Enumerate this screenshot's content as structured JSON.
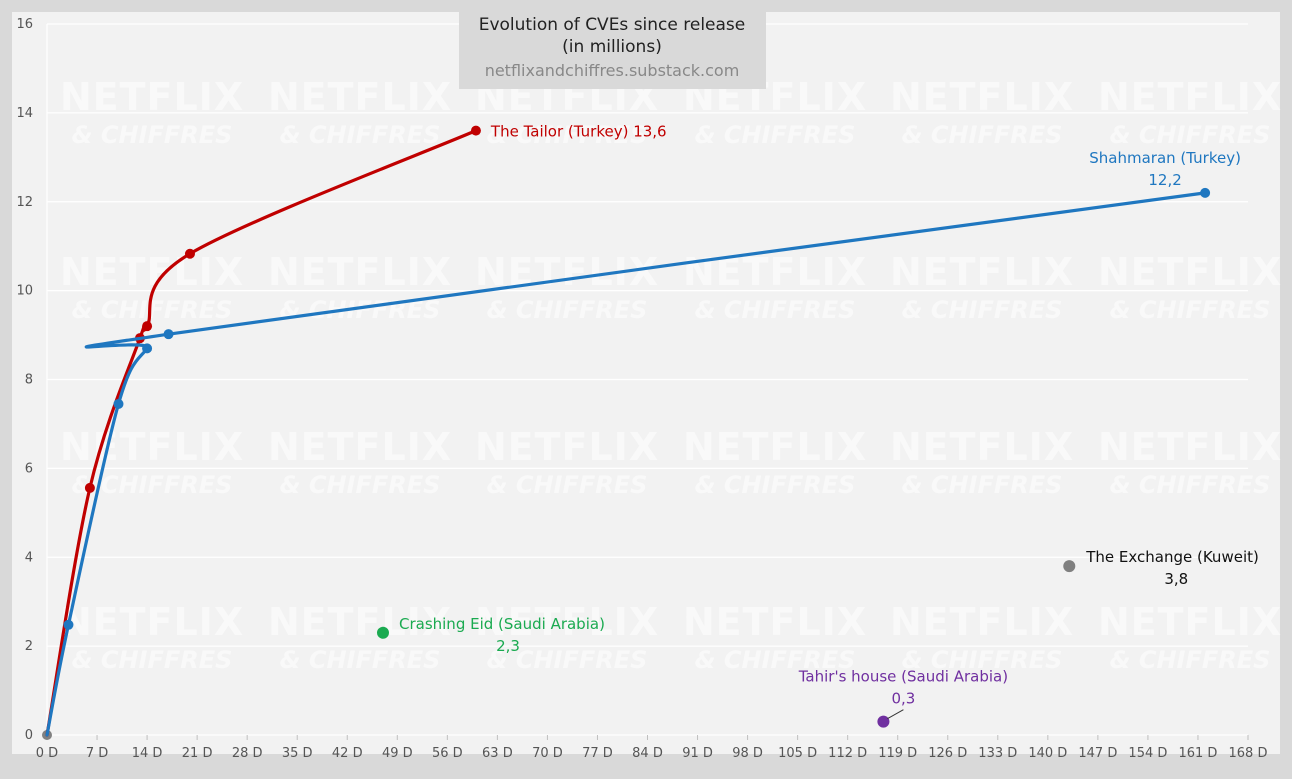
{
  "chart_data": {
    "type": "line",
    "title_lines": [
      "Evolution of CVEs since release",
      "(in millions)"
    ],
    "source": "netflixandchiffres.substack.com",
    "watermark": {
      "line1": "NETFLIX",
      "line2": "& CHIFFRES"
    },
    "xlim": [
      0,
      168
    ],
    "ylim": [
      0,
      16
    ],
    "x_ticks": [
      {
        "value": 0,
        "label": "0 D"
      },
      {
        "value": 7,
        "label": "7 D"
      },
      {
        "value": 14,
        "label": "14 D"
      },
      {
        "value": 21,
        "label": "21 D"
      },
      {
        "value": 28,
        "label": "28 D"
      },
      {
        "value": 35,
        "label": "35 D"
      },
      {
        "value": 42,
        "label": "42 D"
      },
      {
        "value": 49,
        "label": "49 D"
      },
      {
        "value": 56,
        "label": "56 D"
      },
      {
        "value": 63,
        "label": "63 D"
      },
      {
        "value": 70,
        "label": "70 D"
      },
      {
        "value": 77,
        "label": "77 D"
      },
      {
        "value": 84,
        "label": "84 D"
      },
      {
        "value": 91,
        "label": "91 D"
      },
      {
        "value": 98,
        "label": "98 D"
      },
      {
        "value": 105,
        "label": "105 D"
      },
      {
        "value": 112,
        "label": "112 D"
      },
      {
        "value": 119,
        "label": "119 D"
      },
      {
        "value": 126,
        "label": "126 D"
      },
      {
        "value": 133,
        "label": "133 D"
      },
      {
        "value": 140,
        "label": "140 D"
      },
      {
        "value": 147,
        "label": "147 D"
      },
      {
        "value": 154,
        "label": "154 D"
      },
      {
        "value": 161,
        "label": "161 D"
      },
      {
        "value": 168,
        "label": "168 D"
      }
    ],
    "y_ticks": [
      {
        "value": 0,
        "label": "0"
      },
      {
        "value": 2,
        "label": "2"
      },
      {
        "value": 4,
        "label": "4"
      },
      {
        "value": 6,
        "label": "6"
      },
      {
        "value": 8,
        "label": "8"
      },
      {
        "value": 10,
        "label": "10"
      },
      {
        "value": 12,
        "label": "12"
      },
      {
        "value": 14,
        "label": "14"
      },
      {
        "value": 16,
        "label": "16"
      }
    ],
    "series": [
      {
        "key": "the-tailor",
        "color": "#c00000",
        "kind": "line",
        "points": [
          [
            0,
            0
          ],
          [
            6,
            5.56
          ],
          [
            13,
            8.93
          ],
          [
            14,
            9.2
          ],
          [
            20,
            10.83
          ],
          [
            60,
            13.6
          ]
        ],
        "label": {
          "lines": [
            "The Tailor (Turkey) 13,6"
          ],
          "anchor": "start"
        }
      },
      {
        "key": "shahmaran",
        "color": "#1f77c0",
        "kind": "line",
        "points": [
          [
            0,
            0
          ],
          [
            3,
            2.48
          ],
          [
            10,
            7.45
          ],
          [
            14,
            8.7
          ],
          [
            17,
            9.02
          ],
          [
            162,
            12.2
          ]
        ],
        "label": {
          "lines": [
            "Shahmaran (Turkey)",
            "12,2"
          ],
          "anchor": "middle"
        }
      },
      {
        "key": "crashing-eid",
        "color": "#1aaa50",
        "kind": "point",
        "points": [
          [
            47,
            2.3
          ]
        ],
        "label": {
          "lines": [
            "Crashing Eid (Saudi Arabia)",
            "2,3"
          ],
          "anchor": "start"
        }
      },
      {
        "key": "tahirs-house",
        "color": "#7030a0",
        "kind": "point",
        "points": [
          [
            117,
            0.3
          ]
        ],
        "label": {
          "lines": [
            "Tahir's house (Saudi Arabia)",
            "0,3"
          ],
          "anchor": "middle"
        }
      },
      {
        "key": "the-exchange",
        "color": "#808080",
        "kind": "point",
        "points": [
          [
            143,
            3.8
          ]
        ],
        "label": {
          "lines": [
            "The Exchange (Kuweit)",
            "3,8"
          ],
          "anchor": "start",
          "color": "#111111"
        }
      }
    ],
    "grid": true,
    "colors": {
      "background": "#d9d9d9",
      "plot_area": "#f2f2f2",
      "grid": "#ffffff",
      "title_box": "#d9d9d9"
    }
  }
}
